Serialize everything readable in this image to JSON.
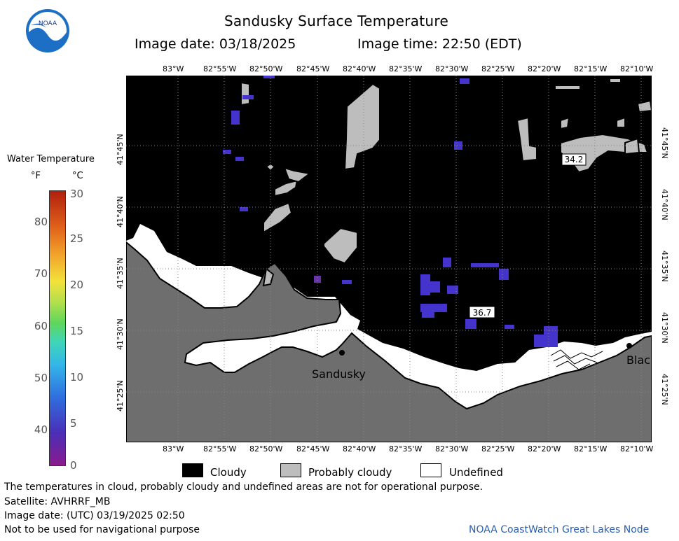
{
  "header": {
    "title": "Sandusky Surface Temperature",
    "image_date": "Image date: 03/18/2025",
    "image_time": "Image time: 22:50 (EDT)"
  },
  "logo_text": "NOAA",
  "colorbar": {
    "title": "Water Temperature",
    "unit_f": "°F",
    "unit_c": "°C",
    "f_ticks": [
      "80",
      "70",
      "60",
      "50",
      "40"
    ],
    "c_ticks": [
      "30",
      "25",
      "20",
      "15",
      "10",
      "5",
      "0"
    ]
  },
  "map": {
    "lon_ticks": [
      "83°W",
      "82°55'W",
      "82°50'W",
      "82°45'W",
      "82°40'W",
      "82°35'W",
      "82°30'W",
      "82°25'W",
      "82°20'W",
      "82°15'W",
      "82°10'W"
    ],
    "lat_ticks": [
      "41°45'N",
      "41°40'N",
      "41°35'N",
      "41°30'N",
      "41°25'N"
    ],
    "places": [
      {
        "name": "Sandusky"
      },
      {
        "name": "Blac"
      }
    ],
    "temp_labels": [
      "34.2",
      "36.7"
    ],
    "colors": {
      "cloudy": "#000000",
      "probably_cloudy": "#bdbdbd",
      "land": "#6e6e6e",
      "undefined": "#ffffff",
      "cold_water": "#4433cc"
    }
  },
  "legend": {
    "items": [
      {
        "label": "Cloudy",
        "color": "#000000"
      },
      {
        "label": "Probably cloudy",
        "color": "#bdbdbd"
      },
      {
        "label": "Undefined",
        "color": "#ffffff"
      }
    ]
  },
  "notes": {
    "disclaimer": "The temperatures in cloud, probably cloudy and undefined areas are not for operational purpose.",
    "satellite": "Satellite: AVHRRF_MB",
    "utc_date": "Image date: (UTC) 03/19/2025  02:50",
    "nav_warning": "Not to be used for navigational purpose",
    "credit": "NOAA CoastWatch Great Lakes Node"
  }
}
